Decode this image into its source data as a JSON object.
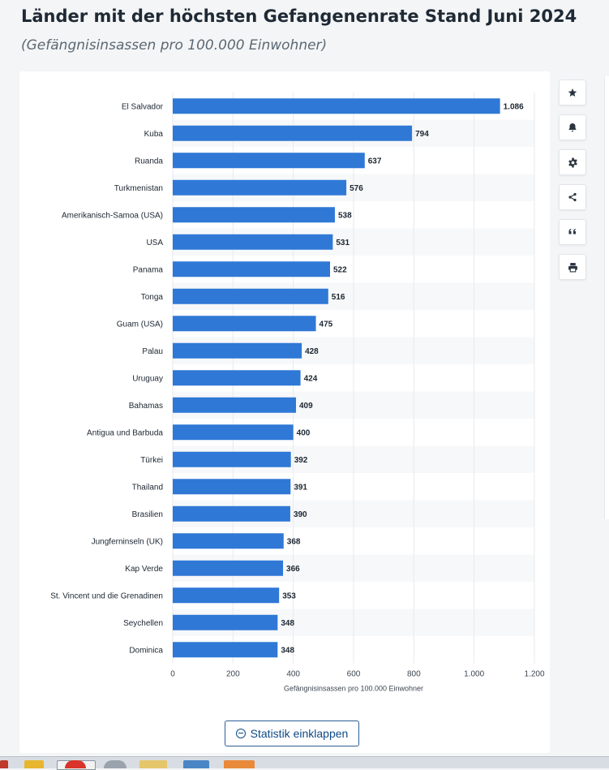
{
  "header": {
    "title": "Länder mit der höchsten Gefangenenrate Stand Juni 2024",
    "subtitle": "(Gefängnisinsassen pro 100.000 Einwohner)"
  },
  "toolbar": {
    "buttons": [
      {
        "icon": "star-icon"
      },
      {
        "icon": "bell-icon"
      },
      {
        "icon": "gear-icon"
      },
      {
        "icon": "share-icon"
      },
      {
        "icon": "quote-icon"
      },
      {
        "icon": "print-icon"
      }
    ]
  },
  "collapse_button": {
    "label": "Statistik einklappen"
  },
  "colors": {
    "bar": "#2f78d6",
    "stripe": "#f7f8f9",
    "grid": "#e7e9ec",
    "text": "#1c2632"
  },
  "chart_data": {
    "type": "bar",
    "orientation": "horizontal",
    "categories": [
      "El Salvador",
      "Kuba",
      "Ruanda",
      "Turkmenistan",
      "Amerikanisch-Samoa (USA)",
      "USA",
      "Panama",
      "Tonga",
      "Guam (USA)",
      "Palau",
      "Uruguay",
      "Bahamas",
      "Antigua und Barbuda",
      "Türkei",
      "Thailand",
      "Brasilien",
      "Jungferninseln (UK)",
      "Kap Verde",
      "St. Vincent und die Grenadinen",
      "Seychellen",
      "Dominica"
    ],
    "values": [
      1086,
      794,
      637,
      576,
      538,
      531,
      522,
      516,
      475,
      428,
      424,
      409,
      400,
      392,
      391,
      390,
      368,
      366,
      353,
      348,
      348
    ],
    "value_labels": [
      "1.086",
      "794",
      "637",
      "576",
      "538",
      "531",
      "522",
      "516",
      "475",
      "428",
      "424",
      "409",
      "400",
      "392",
      "391",
      "390",
      "368",
      "366",
      "353",
      "348",
      "348"
    ],
    "xlim": [
      0,
      1200
    ],
    "xticks": [
      0,
      200,
      400,
      600,
      800,
      1000,
      1200
    ],
    "xtick_labels": [
      "0",
      "200",
      "400",
      "600",
      "800",
      "1.000",
      "1.200"
    ],
    "xlabel": "Gefängnisinsassen pro 100.000 Einwohner",
    "grid": true,
    "legend": "none"
  }
}
